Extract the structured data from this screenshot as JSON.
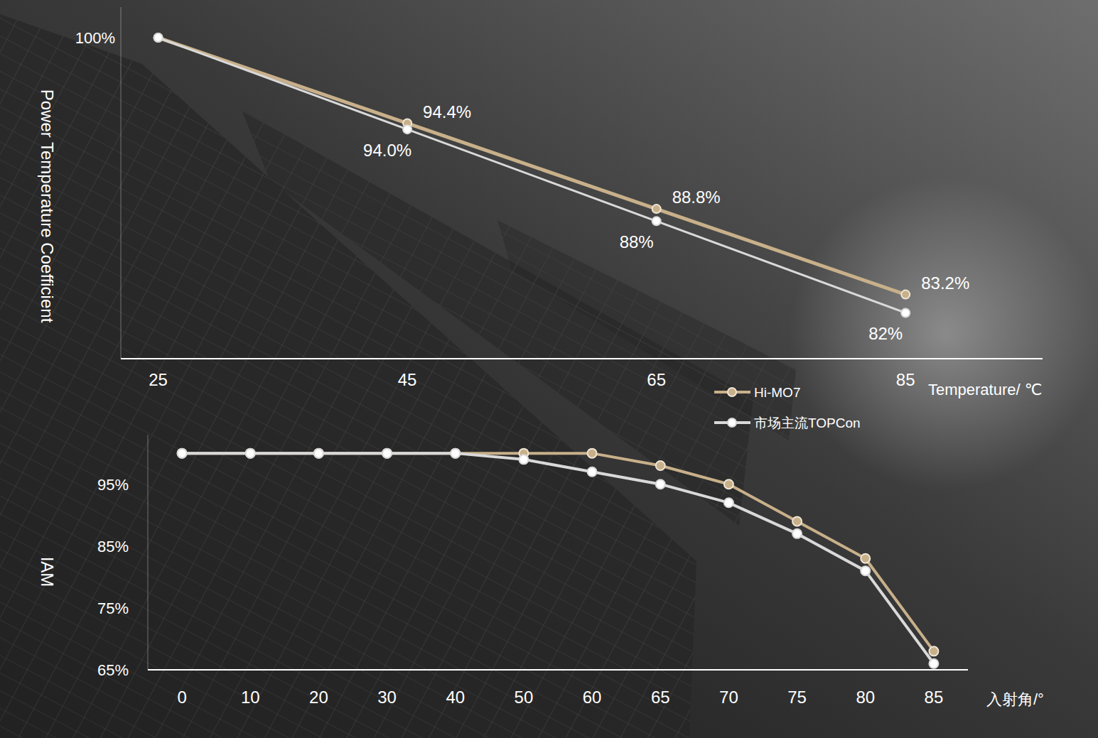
{
  "chart_data": [
    {
      "type": "line",
      "y_label": "Power Temperature Coefficient",
      "x_label": "Temperature/ ℃",
      "x": [
        25,
        45,
        65,
        85
      ],
      "xlim": [
        22,
        96
      ],
      "xticks": [
        25,
        45,
        65,
        85
      ],
      "ylim": [
        79,
        102
      ],
      "yticks": [
        {
          "value": 100,
          "label": "100%"
        }
      ],
      "grid": false,
      "legend": "bottom right",
      "data_labels": true,
      "marker": "circle",
      "line_style": "solid",
      "series": [
        {
          "name": "Hi-MO7",
          "color": "#c8b08a",
          "values": [
            100,
            94.4,
            88.8,
            83.2
          ],
          "value_labels": [
            null,
            "94.4%",
            "88.8%",
            "83.2%"
          ]
        },
        {
          "name": "市场主流TOPCon",
          "color": "#d9d9d9",
          "values": [
            100,
            94.0,
            88,
            82
          ],
          "value_labels": [
            null,
            "94.0%",
            "88%",
            "82%"
          ]
        }
      ]
    },
    {
      "type": "line",
      "y_label": "IAM",
      "x_label": "入射角/°",
      "categories": [
        "0",
        "10",
        "20",
        "30",
        "40",
        "50",
        "60",
        "65",
        "70",
        "75",
        "80",
        "85"
      ],
      "ylim": [
        65,
        103
      ],
      "yticks": [
        {
          "value": 65,
          "label": "65%"
        },
        {
          "value": 75,
          "label": "75%"
        },
        {
          "value": 85,
          "label": "85%"
        },
        {
          "value": 95,
          "label": "95%"
        }
      ],
      "grid": false,
      "marker": "circle",
      "line_style": "solid",
      "series": [
        {
          "color": "#c8b08a",
          "values": [
            100,
            100,
            100,
            100,
            100,
            100,
            100,
            98,
            95,
            89,
            83,
            68
          ]
        },
        {
          "color": "#d9d9d9",
          "values": [
            100,
            100,
            100,
            100,
            100,
            99,
            97,
            95,
            92,
            87,
            81,
            66
          ]
        }
      ]
    }
  ]
}
